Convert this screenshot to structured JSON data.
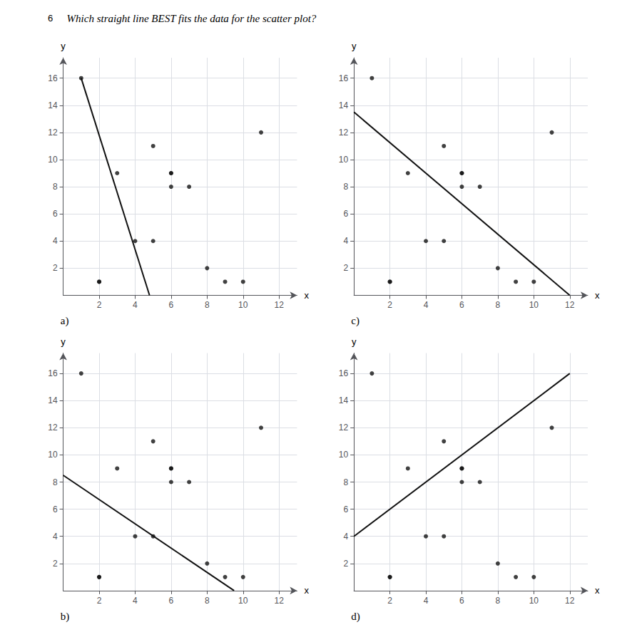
{
  "title": "Which straight line BEST fits the data for the scatter plot?",
  "annotations": [
    "6"
  ],
  "chart_data": [
    {
      "type": "scatter",
      "title": "a)",
      "xlabel": "x",
      "ylabel": "y",
      "xlim": [
        0,
        13
      ],
      "ylim": [
        0,
        17.5
      ],
      "xticks": [
        2,
        4,
        6,
        8,
        10,
        12
      ],
      "yticks": [
        2,
        4,
        6,
        8,
        10,
        12,
        14,
        16
      ],
      "grid": true,
      "series": [
        {
          "type": "scatter",
          "color": "#111111",
          "x": [
            1,
            2,
            3,
            4,
            5,
            5,
            6,
            6,
            6,
            7,
            8,
            9,
            10,
            11,
            2
          ],
          "values": [
            16,
            1,
            9,
            4,
            11,
            4,
            9,
            9,
            8,
            8,
            2,
            1,
            1,
            12,
            1
          ]
        },
        {
          "type": "line",
          "color": "#111111",
          "x": [
            1,
            4.8
          ],
          "values": [
            16,
            0
          ]
        }
      ]
    },
    {
      "type": "scatter",
      "title": "c)",
      "xlabel": "x",
      "ylabel": "y",
      "xlim": [
        0,
        13
      ],
      "ylim": [
        0,
        17.5
      ],
      "xticks": [
        2,
        4,
        6,
        8,
        10,
        12
      ],
      "yticks": [
        2,
        4,
        6,
        8,
        10,
        12,
        14,
        16
      ],
      "grid": true,
      "series": [
        {
          "type": "scatter",
          "color": "#111111",
          "x": [
            1,
            2,
            3,
            4,
            5,
            5,
            6,
            6,
            6,
            7,
            8,
            9,
            10,
            11,
            2
          ],
          "values": [
            16,
            1,
            9,
            4,
            11,
            4,
            9,
            9,
            8,
            8,
            2,
            1,
            1,
            12,
            1
          ]
        },
        {
          "type": "line",
          "color": "#111111",
          "x": [
            0,
            12
          ],
          "values": [
            13.5,
            0
          ]
        }
      ]
    },
    {
      "type": "scatter",
      "title": "b)",
      "xlabel": "x",
      "ylabel": "y",
      "xlim": [
        0,
        13
      ],
      "ylim": [
        0,
        17.5
      ],
      "xticks": [
        2,
        4,
        6,
        8,
        10,
        12
      ],
      "yticks": [
        2,
        4,
        6,
        8,
        10,
        12,
        14,
        16
      ],
      "grid": true,
      "series": [
        {
          "type": "scatter",
          "color": "#111111",
          "x": [
            1,
            2,
            3,
            4,
            5,
            5,
            6,
            6,
            6,
            7,
            8,
            9,
            10,
            11,
            2
          ],
          "values": [
            16,
            1,
            9,
            4,
            11,
            4,
            9,
            9,
            8,
            8,
            2,
            1,
            1,
            12,
            1
          ]
        },
        {
          "type": "line",
          "color": "#111111",
          "x": [
            0,
            9.5
          ],
          "values": [
            8.5,
            0
          ]
        }
      ]
    },
    {
      "type": "scatter",
      "title": "d)",
      "xlabel": "x",
      "ylabel": "y",
      "xlim": [
        0,
        13
      ],
      "ylim": [
        0,
        17.5
      ],
      "xticks": [
        2,
        4,
        6,
        8,
        10,
        12
      ],
      "yticks": [
        2,
        4,
        6,
        8,
        10,
        12,
        14,
        16
      ],
      "grid": true,
      "series": [
        {
          "type": "scatter",
          "color": "#111111",
          "x": [
            1,
            2,
            3,
            4,
            5,
            5,
            6,
            6,
            6,
            7,
            8,
            9,
            10,
            11,
            2
          ],
          "values": [
            16,
            1,
            9,
            4,
            11,
            4,
            9,
            9,
            8,
            8,
            2,
            1,
            1,
            12,
            1
          ]
        },
        {
          "type": "line",
          "color": "#111111",
          "x": [
            0,
            12
          ],
          "values": [
            4,
            16
          ]
        }
      ]
    }
  ]
}
